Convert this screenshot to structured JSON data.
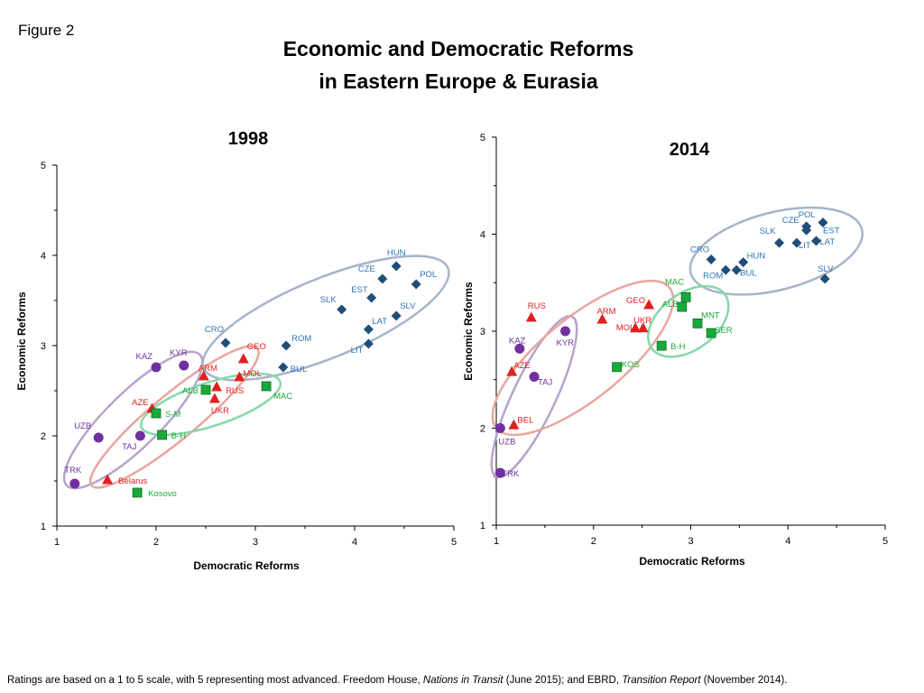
{
  "figure_label": "Figure 2",
  "title_line1": "Economic and Democratic Reforms",
  "title_line2": "in Eastern Europe & Eurasia",
  "colors": {
    "blue": "#1f4e79",
    "blue_label": "#2e75b6",
    "purple": "#7030a0",
    "red": "#e02020",
    "green": "#1aaa3a",
    "axis": "#000000",
    "ellipse_blue": "#a6b4c8",
    "ellipse_purple": "#b6a4cc",
    "ellipse_red": "#e8a6a0",
    "ellipse_green": "#86d8a8"
  },
  "chart_data": [
    {
      "type": "scatter",
      "title": "1998",
      "xlabel": "Democratic Reforms",
      "ylabel": "Economic Reforms",
      "xlim": [
        1,
        5
      ],
      "ylim": [
        1,
        5
      ],
      "xticks": [
        "1",
        "2",
        "3",
        "4",
        "5"
      ],
      "yticks": [
        "1",
        "2",
        "3",
        "4",
        "5"
      ],
      "series": [
        {
          "group": "blue",
          "marker": "diamond",
          "points": [
            {
              "label": "HUN",
              "x": 4.42,
              "y": 3.88
            },
            {
              "label": "CZE",
              "x": 4.28,
              "y": 3.74
            },
            {
              "label": "POL",
              "x": 4.62,
              "y": 3.68
            },
            {
              "label": "EST",
              "x": 4.17,
              "y": 3.53
            },
            {
              "label": "SLK",
              "x": 3.87,
              "y": 3.4
            },
            {
              "label": "SLV",
              "x": 4.42,
              "y": 3.33
            },
            {
              "label": "LAT",
              "x": 4.14,
              "y": 3.18
            },
            {
              "label": "CRO",
              "x": 2.7,
              "y": 3.03
            },
            {
              "label": "ROM",
              "x": 3.31,
              "y": 3.0
            },
            {
              "label": "LIT",
              "x": 4.14,
              "y": 3.02
            },
            {
              "label": "BUL",
              "x": 3.28,
              "y": 2.76
            }
          ]
        },
        {
          "group": "purple",
          "marker": "circle",
          "points": [
            {
              "label": "KAZ",
              "x": 2.0,
              "y": 2.76
            },
            {
              "label": "KYR",
              "x": 2.28,
              "y": 2.78
            },
            {
              "label": "UZB",
              "x": 1.42,
              "y": 1.98
            },
            {
              "label": "TAJ",
              "x": 1.84,
              "y": 2.0
            },
            {
              "label": "TRK",
              "x": 1.18,
              "y": 1.47
            }
          ]
        },
        {
          "group": "red",
          "marker": "triangle",
          "points": [
            {
              "label": "GEO",
              "x": 2.88,
              "y": 2.85
            },
            {
              "label": "ARM",
              "x": 2.48,
              "y": 2.66
            },
            {
              "label": "MOL",
              "x": 2.84,
              "y": 2.65
            },
            {
              "label": "RUS",
              "x": 2.61,
              "y": 2.54
            },
            {
              "label": "AZE",
              "x": 1.96,
              "y": 2.3
            },
            {
              "label": "UKR",
              "x": 2.59,
              "y": 2.41
            },
            {
              "label": "Belarus",
              "x": 1.51,
              "y": 1.51
            }
          ]
        },
        {
          "group": "green",
          "marker": "square",
          "points": [
            {
              "label": "ALB",
              "x": 2.5,
              "y": 2.51
            },
            {
              "label": "MAC",
              "x": 3.11,
              "y": 2.55
            },
            {
              "label": "S-M",
              "x": 2.0,
              "y": 2.25
            },
            {
              "label": "B-H",
              "x": 2.06,
              "y": 2.01
            },
            {
              "label": "Kosovo",
              "x": 1.81,
              "y": 1.37
            }
          ]
        }
      ]
    },
    {
      "type": "scatter",
      "title": "2014",
      "xlabel": "Democratic Reforms",
      "ylabel": "Economic Reforms",
      "xlim": [
        1,
        5
      ],
      "ylim": [
        1,
        5
      ],
      "xticks": [
        "1",
        "2",
        "3",
        "4",
        "5"
      ],
      "yticks": [
        "1",
        "2",
        "3",
        "4",
        "5"
      ],
      "series": [
        {
          "group": "blue",
          "marker": "diamond",
          "points": [
            {
              "label": "POL",
              "x": 4.19,
              "y": 4.08
            },
            {
              "label": "EST",
              "x": 4.36,
              "y": 4.12
            },
            {
              "label": "CZE",
              "x": 4.19,
              "y": 4.04
            },
            {
              "label": "SLK",
              "x": 3.91,
              "y": 3.91
            },
            {
              "label": "LAT",
              "x": 4.29,
              "y": 3.93
            },
            {
              "label": "LIT",
              "x": 4.09,
              "y": 3.91
            },
            {
              "label": "CRO",
              "x": 3.21,
              "y": 3.74
            },
            {
              "label": "HUN",
              "x": 3.54,
              "y": 3.71
            },
            {
              "label": "ROM",
              "x": 3.36,
              "y": 3.63
            },
            {
              "label": "BUL",
              "x": 3.47,
              "y": 3.63
            },
            {
              "label": "SLV",
              "x": 4.38,
              "y": 3.54
            }
          ]
        },
        {
          "group": "purple",
          "marker": "circle",
          "points": [
            {
              "label": "KAZ",
              "x": 1.24,
              "y": 2.82
            },
            {
              "label": "KYR",
              "x": 1.71,
              "y": 3.0
            },
            {
              "label": "TAJ",
              "x": 1.39,
              "y": 2.53
            },
            {
              "label": "UZB",
              "x": 1.04,
              "y": 2.0
            },
            {
              "label": "TRK",
              "x": 1.04,
              "y": 1.54
            }
          ]
        },
        {
          "group": "red",
          "marker": "triangle",
          "points": [
            {
              "label": "RUS",
              "x": 1.36,
              "y": 3.14
            },
            {
              "label": "ARM",
              "x": 2.09,
              "y": 3.12
            },
            {
              "label": "GEO",
              "x": 2.57,
              "y": 3.27
            },
            {
              "label": "UKR",
              "x": 2.43,
              "y": 3.03
            },
            {
              "label": "MOL",
              "x": 2.51,
              "y": 3.03
            },
            {
              "label": "AZE",
              "x": 1.16,
              "y": 2.58
            },
            {
              "label": "BEL",
              "x": 1.18,
              "y": 2.03
            }
          ]
        },
        {
          "group": "green",
          "marker": "square",
          "points": [
            {
              "label": "MAC",
              "x": 2.95,
              "y": 3.35
            },
            {
              "label": "ALB",
              "x": 2.91,
              "y": 3.25
            },
            {
              "label": "MNT",
              "x": 3.07,
              "y": 3.08
            },
            {
              "label": "SER",
              "x": 3.21,
              "y": 2.98
            },
            {
              "label": "B-H",
              "x": 2.7,
              "y": 2.85
            },
            {
              "label": "KOS",
              "x": 2.24,
              "y": 2.63
            }
          ]
        }
      ]
    }
  ],
  "footer": {
    "part1": "Ratings are based on a 1 to 5 scale, with 5 representing most advanced.  Freedom House, ",
    "italic1": "Nations in Transit",
    "part2": " (June 2015); and EBRD, ",
    "italic2": "Transition Report",
    "part3": " (November 2014)."
  }
}
